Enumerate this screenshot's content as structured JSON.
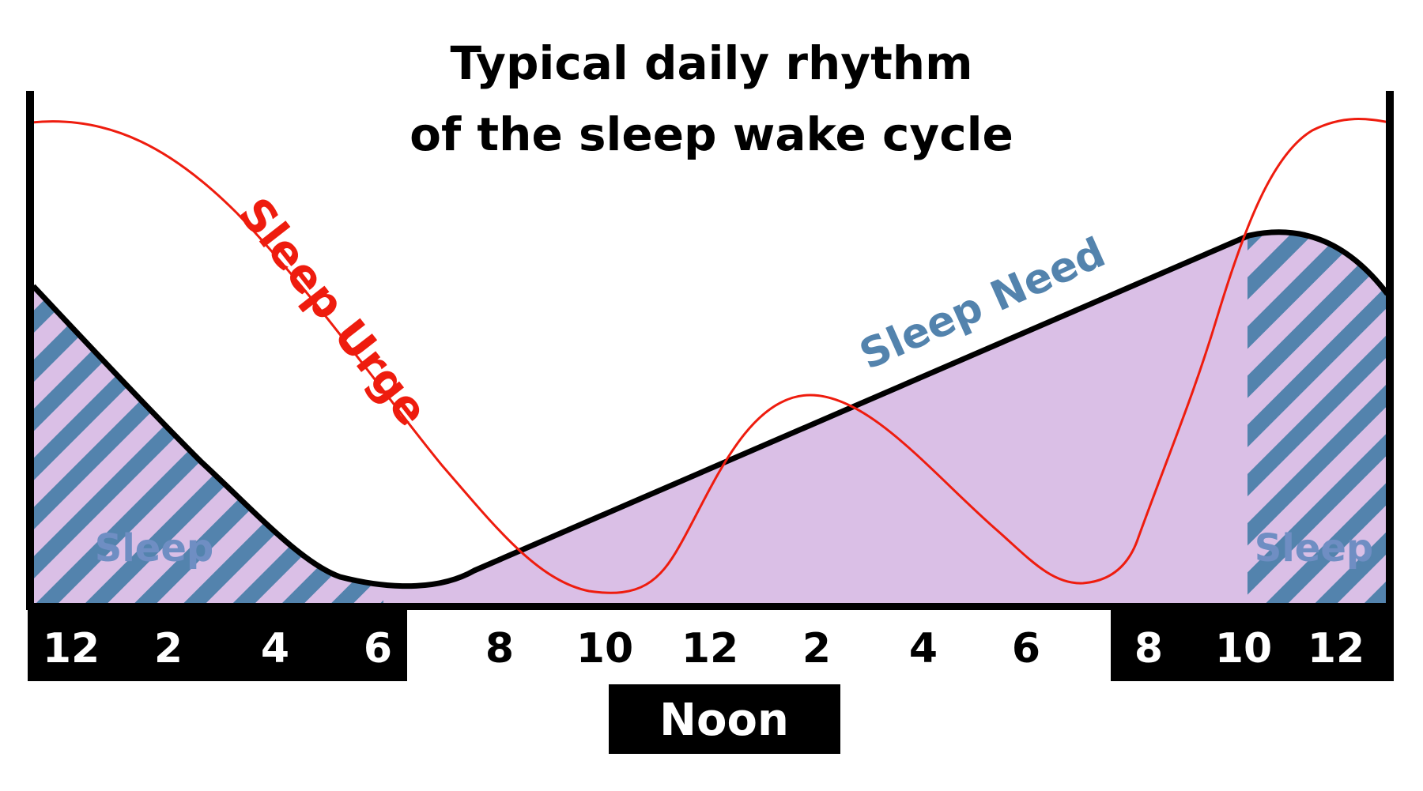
{
  "title_line1": "Typical daily rhythm",
  "title_line2": "of the sleep wake cycle",
  "labels": {
    "sleep_urge": "Sleep Urge",
    "sleep_need": "Sleep Need",
    "sleep_left": "Sleep",
    "sleep_right": "Sleep"
  },
  "hours": [
    "12",
    "2",
    "4",
    "6",
    "8",
    "10",
    "12",
    "2",
    "4",
    "6",
    "8",
    "10",
    "12"
  ],
  "noon_label": "Noon",
  "colors": {
    "sleep_urge": "#ee1c0e",
    "sleep_need_line": "#000000",
    "sleep_need_fill": "#dabfe6",
    "stripe": "#5383ad",
    "sleep_label": "#6f8ec3",
    "bar": "#000000"
  }
}
